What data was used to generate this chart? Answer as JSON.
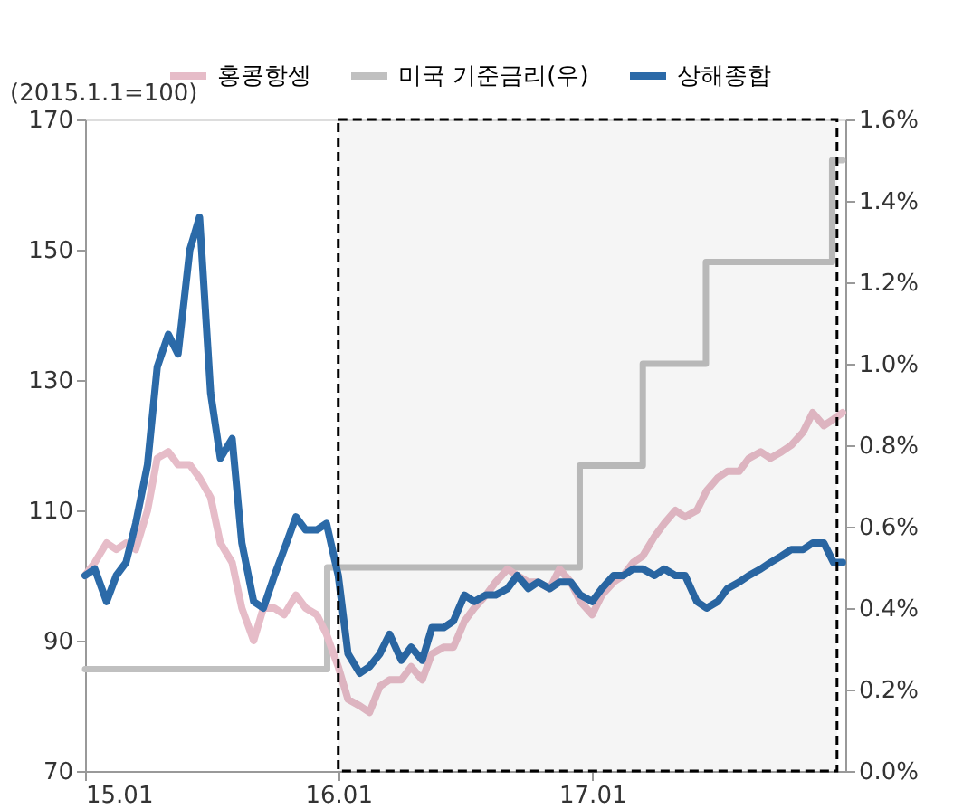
{
  "chart_data": {
    "type": "line",
    "ylabel": "(2015.1.1=100)",
    "x": [
      "2015-01-01",
      "2015-01-15",
      "2015-02-01",
      "2015-02-15",
      "2015-03-01",
      "2015-03-15",
      "2015-04-01",
      "2015-04-15",
      "2015-05-01",
      "2015-05-15",
      "2015-06-01",
      "2015-06-15",
      "2015-07-01",
      "2015-07-15",
      "2015-08-01",
      "2015-08-15",
      "2015-09-01",
      "2015-09-15",
      "2015-10-01",
      "2015-10-15",
      "2015-11-01",
      "2015-11-15",
      "2015-12-01",
      "2015-12-15",
      "2016-01-01",
      "2016-01-15",
      "2016-02-01",
      "2016-02-15",
      "2016-03-01",
      "2016-03-15",
      "2016-04-01",
      "2016-04-15",
      "2016-05-01",
      "2016-05-15",
      "2016-06-01",
      "2016-06-15",
      "2016-07-01",
      "2016-07-15",
      "2016-08-01",
      "2016-08-15",
      "2016-09-01",
      "2016-09-15",
      "2016-10-01",
      "2016-10-15",
      "2016-11-01",
      "2016-11-15",
      "2016-12-01",
      "2016-12-15",
      "2017-01-01",
      "2017-01-15",
      "2017-02-01",
      "2017-02-15",
      "2017-03-01",
      "2017-03-15",
      "2017-04-01",
      "2017-04-15",
      "2017-05-01",
      "2017-05-15",
      "2017-06-01",
      "2017-06-15",
      "2017-07-01",
      "2017-07-15",
      "2017-08-01",
      "2017-08-15",
      "2017-09-01",
      "2017-09-15",
      "2017-10-01",
      "2017-10-15",
      "2017-11-01",
      "2017-11-15",
      "2017-12-01",
      "2017-12-15",
      "2017-12-28"
    ],
    "series": [
      {
        "name": "홍콩항셍",
        "color": "#e6bcc8",
        "values": [
          100,
          102,
          105,
          104,
          105,
          104,
          110,
          118,
          119,
          117,
          117,
          115,
          112,
          105,
          102,
          95,
          90,
          95,
          95,
          94,
          97,
          95,
          94,
          91,
          86,
          81,
          80,
          79,
          83,
          84,
          84,
          86,
          84,
          88,
          89,
          89,
          93,
          95,
          97,
          99,
          101,
          100,
          99,
          99,
          98,
          101,
          99,
          96,
          94,
          97,
          99,
          100,
          102,
          103,
          106,
          108,
          110,
          109,
          110,
          113,
          115,
          116,
          116,
          118,
          119,
          118,
          119,
          120,
          122,
          125,
          123,
          124,
          125
        ]
      },
      {
        "name": "미국 기준금리(우)",
        "color": "#c0c0c0",
        "type": "step",
        "axis": "y2",
        "x": [
          "2015-01-01",
          "2015-12-16",
          "2016-12-14",
          "2017-03-15",
          "2017-06-14",
          "2017-12-13",
          "2017-12-28"
        ],
        "values": [
          0.25,
          0.5,
          0.75,
          1.0,
          1.25,
          1.5,
          1.5
        ]
      },
      {
        "name": "상해종합",
        "color": "#2b6aa8",
        "values": [
          100,
          101,
          96,
          100,
          102,
          108,
          117,
          132,
          137,
          134,
          150,
          155,
          128,
          118,
          121,
          105,
          96,
          95,
          100,
          104,
          109,
          107,
          107,
          108,
          100,
          88,
          85,
          86,
          88,
          91,
          87,
          89,
          87,
          92,
          92,
          93,
          97,
          96,
          97,
          97,
          98,
          100,
          98,
          99,
          98,
          99,
          99,
          97,
          96,
          98,
          100,
          100,
          101,
          101,
          100,
          101,
          100,
          100,
          96,
          95,
          96,
          98,
          99,
          100,
          101,
          102,
          103,
          104,
          104,
          105,
          105,
          102,
          102
        ]
      }
    ],
    "xlim": [
      "2015-01-01",
      "2018-01-01"
    ],
    "xticks": [
      {
        "value": "2015-01-01",
        "label": "15.01"
      },
      {
        "value": "2016-01-01",
        "label": "16.01"
      },
      {
        "value": "2017-01-01",
        "label": "17.01"
      }
    ],
    "ylim": [
      70,
      170
    ],
    "yticks": [
      70,
      90,
      110,
      130,
      150,
      170
    ],
    "y2lim": [
      0,
      1.6
    ],
    "y2ticks": [
      {
        "value": 0,
        "label": "0.0%"
      },
      {
        "value": 0.2,
        "label": "0.2%"
      },
      {
        "value": 0.4,
        "label": "0.4%"
      },
      {
        "value": 0.6,
        "label": "0.6%"
      },
      {
        "value": 0.8,
        "label": "0.8%"
      },
      {
        "value": 1.0,
        "label": "1.0%"
      },
      {
        "value": 1.2,
        "label": "1.2%"
      },
      {
        "value": 1.4,
        "label": "1.4%"
      },
      {
        "value": 1.6,
        "label": "1.6%"
      }
    ],
    "bands": [
      {
        "axis": "x",
        "from": "2016-01-01",
        "to": "2017-12-20",
        "color": "#000000"
      }
    ],
    "legend": "top",
    "grid": false
  }
}
